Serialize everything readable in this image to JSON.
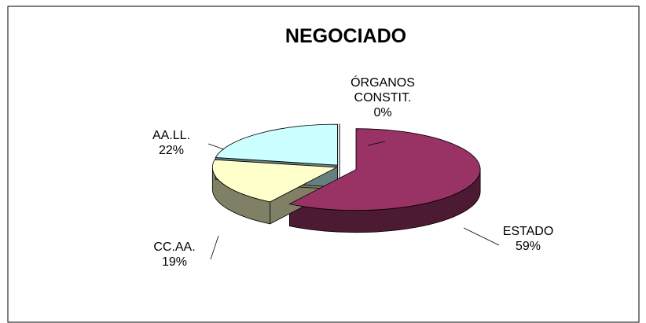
{
  "chart_data": {
    "type": "pie",
    "title": "NEGOCIADO",
    "categories": [
      "ESTADO",
      "CC.AA.",
      "AA.LL.",
      "ÓRGANOS CONSTIT."
    ],
    "values": [
      59,
      19,
      22,
      0
    ],
    "value_labels": [
      "59%",
      "19%",
      "22%",
      "0%"
    ],
    "colors": [
      "#993366",
      "#ffffcc",
      "#ccffff",
      "#ffffff"
    ],
    "side_colors": [
      "#4d1a33",
      "#808066",
      "#668080",
      "#808080"
    ]
  }
}
